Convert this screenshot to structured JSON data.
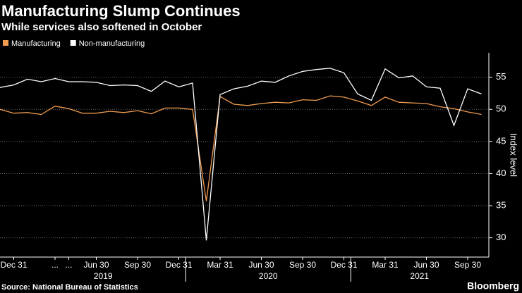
{
  "chart_data": {
    "type": "line",
    "title": "Manufacturing Slump Continues",
    "subtitle": "While services also softened in October",
    "y_axis_label": "Index level",
    "source": "Source: National Bureau of Statistics",
    "brand": "Bloomberg",
    "categories": [
      null,
      "Dec 31",
      null,
      null,
      "...",
      "...",
      null,
      "Jun 30",
      null,
      null,
      "Sep 30",
      null,
      null,
      "Dec 31",
      null,
      null,
      "Mar 31",
      null,
      null,
      "Jun 30",
      null,
      null,
      "Sep 30",
      null,
      null,
      "Dec 31",
      null,
      null,
      "Mar 31",
      null,
      null,
      "Jun 30",
      null,
      null,
      "Sep 30",
      null
    ],
    "years": [
      "2019",
      "2020",
      "2021"
    ],
    "series": [
      {
        "name": "Manufacturing",
        "color": "#f29c50",
        "values": [
          50.0,
          49.4,
          49.5,
          49.2,
          50.5,
          50.1,
          49.4,
          49.4,
          49.7,
          49.5,
          49.8,
          49.3,
          50.2,
          50.2,
          50.0,
          35.7,
          52.0,
          50.8,
          50.6,
          50.9,
          51.1,
          51.0,
          51.5,
          51.4,
          52.1,
          51.9,
          51.3,
          50.6,
          51.9,
          51.1,
          51.0,
          50.9,
          50.4,
          50.1,
          49.6,
          49.2
        ]
      },
      {
        "name": "Non-manufacturing",
        "color": "#ffffff",
        "values": [
          53.4,
          53.8,
          54.7,
          54.3,
          54.8,
          54.3,
          54.3,
          54.2,
          53.7,
          53.8,
          53.7,
          52.8,
          54.4,
          53.5,
          54.1,
          29.6,
          52.3,
          53.2,
          53.6,
          54.4,
          54.2,
          55.2,
          55.9,
          56.2,
          56.4,
          55.7,
          52.4,
          51.4,
          56.3,
          54.9,
          55.2,
          53.5,
          53.3,
          47.5,
          53.2,
          52.4
        ]
      }
    ],
    "ylim": [
      27,
      58.8
    ],
    "yticks": [
      30,
      35,
      40,
      45,
      50,
      55
    ],
    "grid": true
  }
}
